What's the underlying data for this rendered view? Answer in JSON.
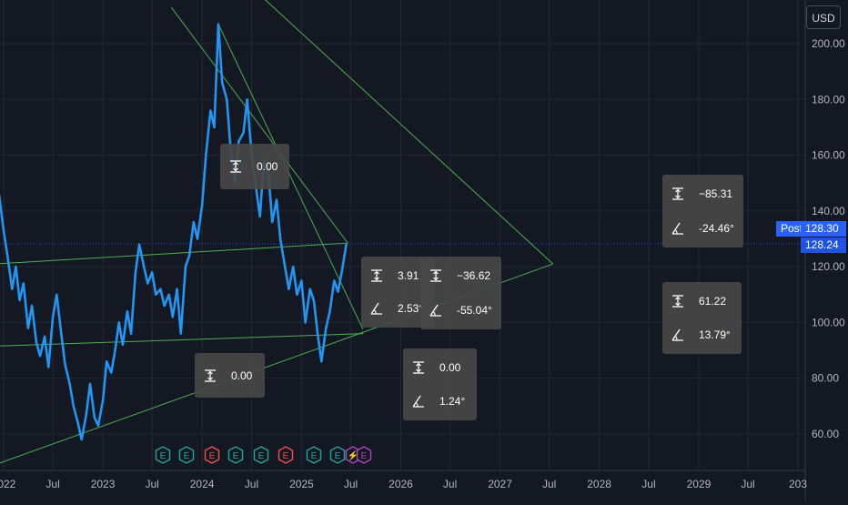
{
  "toolbar": {
    "currency": "USD"
  },
  "price_tags": {
    "post_label": "Post",
    "post_value": "128.30",
    "last_value": "128.24"
  },
  "colors": {
    "background": "#141823",
    "price_line": "#2196f3",
    "trend_lines": "#4caf50",
    "earnings_green": "#26a69a",
    "earnings_red": "#ef5350",
    "split_purple": "#ab47bc"
  },
  "chart_data": {
    "type": "line",
    "title": "",
    "xlabel": "",
    "ylabel": "",
    "y_ticks": [
      "200.00",
      "180.00",
      "160.00",
      "140.00",
      "120.00",
      "100.00",
      "80.00",
      "60.00"
    ],
    "x_ticks": [
      "2022",
      "Jul",
      "2023",
      "Jul",
      "2024",
      "Jul",
      "2025",
      "Jul",
      "2026",
      "Jul",
      "2027",
      "Jul",
      "2028",
      "Jul",
      "2029",
      "Jul",
      "203"
    ],
    "ylim": [
      47,
      213
    ],
    "xlim": [
      "2022-01-01",
      "2030-01-01"
    ],
    "grid": true,
    "series": [
      {
        "points": [
          [
            "2021-12-01",
            143
          ],
          [
            "2021-12-15",
            146
          ],
          [
            "2022-01-01",
            133
          ],
          [
            "2022-01-15",
            124
          ],
          [
            "2022-02-01",
            112
          ],
          [
            "2022-02-15",
            120
          ],
          [
            "2022-03-01",
            108
          ],
          [
            "2022-03-15",
            114
          ],
          [
            "2022-04-01",
            98
          ],
          [
            "2022-04-15",
            106
          ],
          [
            "2022-05-01",
            93
          ],
          [
            "2022-05-15",
            88
          ],
          [
            "2022-06-01",
            95
          ],
          [
            "2022-06-15",
            84
          ],
          [
            "2022-07-01",
            102
          ],
          [
            "2022-07-15",
            110
          ],
          [
            "2022-08-01",
            96
          ],
          [
            "2022-08-15",
            85
          ],
          [
            "2022-09-01",
            78
          ],
          [
            "2022-09-15",
            70
          ],
          [
            "2022-10-01",
            64
          ],
          [
            "2022-10-15",
            58
          ],
          [
            "2022-11-01",
            67
          ],
          [
            "2022-11-15",
            78
          ],
          [
            "2022-12-01",
            66
          ],
          [
            "2022-12-15",
            63
          ],
          [
            "2023-01-01",
            72
          ],
          [
            "2023-01-15",
            86
          ],
          [
            "2023-02-01",
            82
          ],
          [
            "2023-02-15",
            90
          ],
          [
            "2023-03-01",
            100
          ],
          [
            "2023-03-15",
            92
          ],
          [
            "2023-04-01",
            104
          ],
          [
            "2023-04-15",
            96
          ],
          [
            "2023-05-01",
            118
          ],
          [
            "2023-05-15",
            128
          ],
          [
            "2023-06-01",
            120
          ],
          [
            "2023-06-15",
            114
          ],
          [
            "2023-07-01",
            118
          ],
          [
            "2023-07-15",
            110
          ],
          [
            "2023-08-01",
            112
          ],
          [
            "2023-08-15",
            106
          ],
          [
            "2023-09-01",
            110
          ],
          [
            "2023-09-15",
            102
          ],
          [
            "2023-10-01",
            112
          ],
          [
            "2023-10-15",
            96
          ],
          [
            "2023-11-01",
            120
          ],
          [
            "2023-11-15",
            124
          ],
          [
            "2023-12-01",
            136
          ],
          [
            "2023-12-15",
            130
          ],
          [
            "2024-01-01",
            142
          ],
          [
            "2024-01-15",
            160
          ],
          [
            "2024-02-01",
            176
          ],
          [
            "2024-02-15",
            170
          ],
          [
            "2024-03-01",
            207
          ],
          [
            "2024-03-15",
            186
          ],
          [
            "2024-04-01",
            180
          ],
          [
            "2024-04-15",
            162
          ],
          [
            "2024-05-01",
            150
          ],
          [
            "2024-05-15",
            165
          ],
          [
            "2024-06-01",
            168
          ],
          [
            "2024-06-15",
            180
          ],
          [
            "2024-07-01",
            160
          ],
          [
            "2024-07-15",
            150
          ],
          [
            "2024-08-01",
            138
          ],
          [
            "2024-08-15",
            158
          ],
          [
            "2024-09-01",
            154
          ],
          [
            "2024-09-15",
            136
          ],
          [
            "2024-10-01",
            144
          ],
          [
            "2024-10-15",
            130
          ],
          [
            "2024-11-01",
            120
          ],
          [
            "2024-11-15",
            112
          ],
          [
            "2024-12-01",
            120
          ],
          [
            "2024-12-15",
            110
          ],
          [
            "2025-01-01",
            115
          ],
          [
            "2025-01-15",
            100
          ],
          [
            "2025-02-01",
            112
          ],
          [
            "2025-02-15",
            108
          ],
          [
            "2025-03-01",
            96
          ],
          [
            "2025-03-15",
            86
          ],
          [
            "2025-04-01",
            98
          ],
          [
            "2025-04-15",
            104
          ],
          [
            "2025-05-01",
            115
          ],
          [
            "2025-05-15",
            111
          ],
          [
            "2025-06-01",
            120
          ],
          [
            "2025-06-15",
            128.24
          ]
        ]
      }
    ],
    "trend_lines": [
      [
        [
          "2023-09-10",
          213
        ],
        [
          "2025-06-20",
          128.5
        ]
      ],
      [
        [
          "2024-03-01",
          207
        ],
        [
          "2025-08-15",
          97.5
        ]
      ],
      [
        [
          "2023-07-01",
          253
        ],
        [
          "2027-07-15",
          121
        ]
      ],
      [
        [
          "2021-12-01",
          49
        ],
        [
          "2027-07-15",
          121
        ]
      ],
      [
        [
          "2021-12-01",
          121
        ],
        [
          "2025-06-20",
          128.5
        ]
      ],
      [
        [
          "2021-12-01",
          91.5
        ],
        [
          "2025-08-15",
          96
        ]
      ]
    ],
    "measurements": [
      {
        "price_change": "0.00",
        "angle": ""
      },
      {
        "price_change": "0.00",
        "angle": ""
      },
      {
        "price_change": "3.91",
        "angle": "2.53°"
      },
      {
        "price_change": "−36.62",
        "angle": "-55.04°"
      },
      {
        "price_change": "0.00",
        "angle": "1.24°"
      },
      {
        "price_change": "−85.31",
        "angle": "-24.46°"
      },
      {
        "price_change": "61.22",
        "angle": "13.79°"
      }
    ],
    "events": [
      {
        "type": "earnings",
        "label": "E",
        "result": "green"
      },
      {
        "type": "earnings",
        "label": "E",
        "result": "green"
      },
      {
        "type": "earnings",
        "label": "E",
        "result": "red"
      },
      {
        "type": "earnings",
        "label": "E",
        "result": "green"
      },
      {
        "type": "earnings",
        "label": "E",
        "result": "green"
      },
      {
        "type": "earnings",
        "label": "E",
        "result": "red"
      },
      {
        "type": "earnings",
        "label": "E",
        "result": "green"
      },
      {
        "type": "earnings",
        "label": "E",
        "result": "green"
      },
      {
        "type": "split",
        "label": "⚡",
        "result": "purple"
      },
      {
        "type": "earnings",
        "label": "E",
        "result": "purple"
      }
    ]
  }
}
